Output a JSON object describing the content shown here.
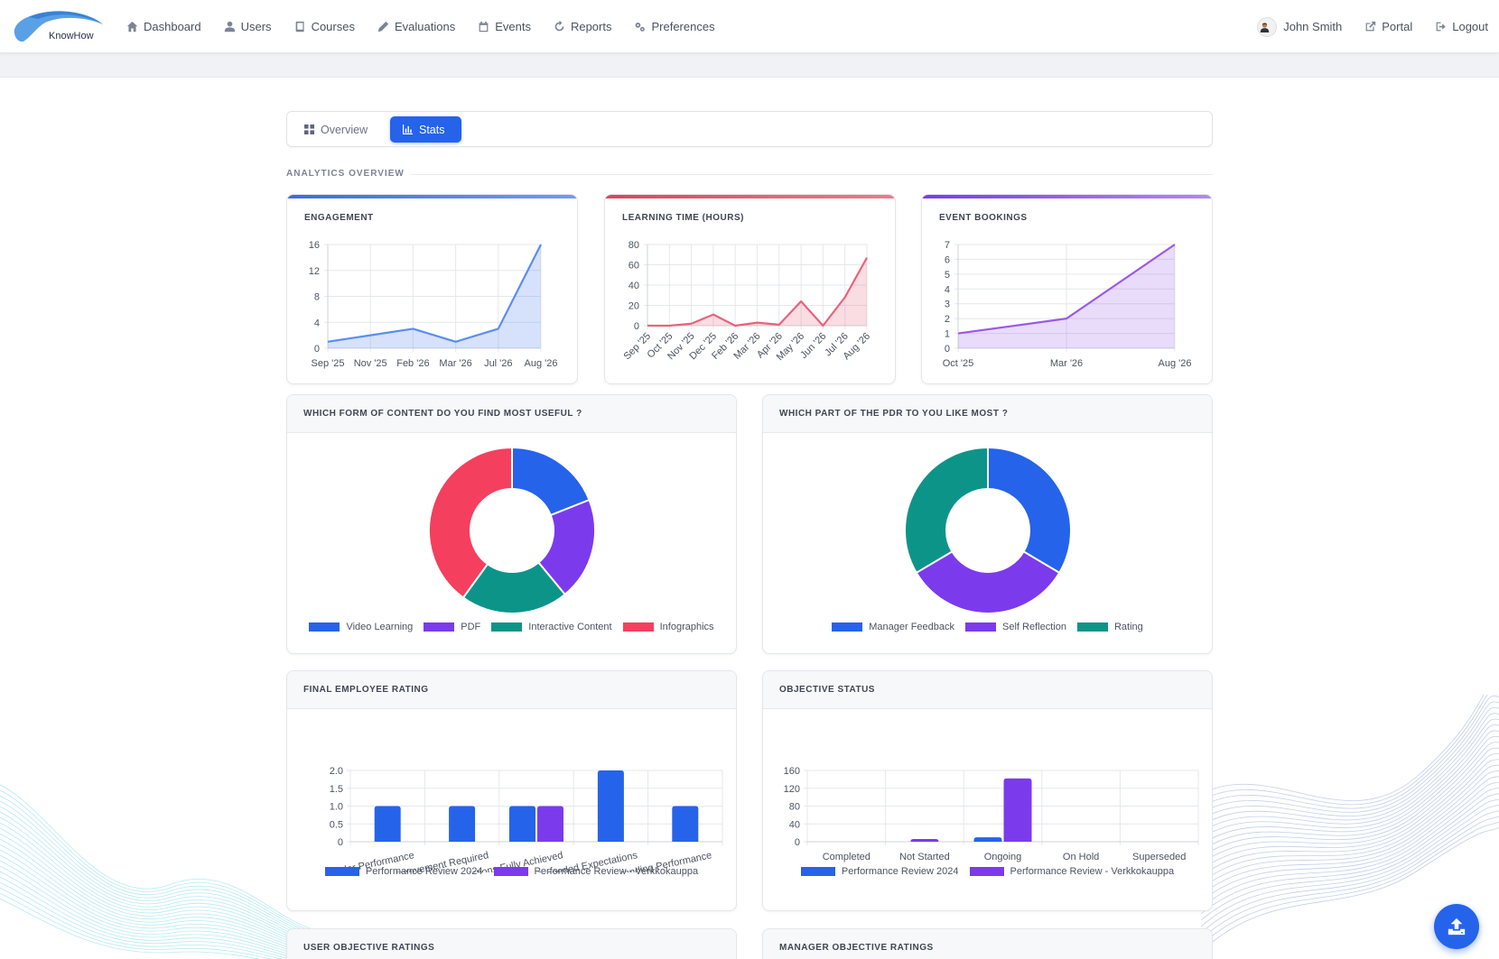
{
  "nav": {
    "logo_text": "KnowHow",
    "items": [
      {
        "label": "Dashboard",
        "icon": "home-icon"
      },
      {
        "label": "Users",
        "icon": "user-icon"
      },
      {
        "label": "Courses",
        "icon": "book-icon"
      },
      {
        "label": "Evaluations",
        "icon": "pencil-icon"
      },
      {
        "label": "Events",
        "icon": "calendar-icon"
      },
      {
        "label": "Reports",
        "icon": "refresh-icon"
      },
      {
        "label": "Preferences",
        "icon": "gears-icon"
      }
    ],
    "user_name": "John Smith",
    "portal_label": "Portal",
    "logout_label": "Logout"
  },
  "tabs": {
    "overview": "Overview",
    "stats": "Stats",
    "active": "stats"
  },
  "section_label": "ANALYTICS OVERVIEW",
  "colors": {
    "primary": "#2563eb",
    "purple": "#7c3aed",
    "teal": "#0d9488",
    "red": "#f43f5e",
    "engagement_line": "#5b8def",
    "learning_line": "#e8637b",
    "bookings_line": "#9b59e6"
  },
  "cards": {
    "engagement": {
      "title": "ENGAGEMENT"
    },
    "learning": {
      "title": "LEARNING TIME (HOURS)"
    },
    "bookings": {
      "title": "EVENT BOOKINGS"
    }
  },
  "panels": {
    "content": {
      "title": "WHICH FORM OF CONTENT DO YOU FIND MOST USEFUL ?"
    },
    "pdr": {
      "title": "WHICH PART OF THE PDR TO YOU LIKE MOST ?"
    },
    "rating": {
      "title": "FINAL EMPLOYEE RATING"
    },
    "objective": {
      "title": "OBJECTIVE STATUS"
    },
    "user_obj": {
      "title": "USER OBJECTIVE RATINGS"
    },
    "manager_obj": {
      "title": "MANAGER OBJECTIVE RATINGS"
    }
  },
  "chart_data": [
    {
      "id": "engagement",
      "type": "area",
      "title": "ENGAGEMENT",
      "x": [
        "Sep '25",
        "Nov '25",
        "Feb '26",
        "Mar '26",
        "Jul '26",
        "Aug '26"
      ],
      "values": [
        1,
        2,
        3,
        1,
        3,
        16
      ],
      "yticks": [
        0,
        4,
        8,
        12,
        16
      ],
      "ylim": [
        0,
        16
      ],
      "grid": true
    },
    {
      "id": "learning",
      "type": "area",
      "title": "LEARNING TIME (HOURS)",
      "x": [
        "Sep '25",
        "Oct '25",
        "Nov '25",
        "Dec '25",
        "Feb '26",
        "Mar '26",
        "Apr '26",
        "May '26",
        "Jun '26",
        "Jul '26",
        "Aug '26"
      ],
      "values": [
        0,
        0,
        2,
        11,
        0,
        3,
        1,
        24,
        0,
        28,
        67
      ],
      "yticks": [
        0,
        20,
        40,
        60,
        80
      ],
      "ylim": [
        0,
        80
      ],
      "grid": true
    },
    {
      "id": "bookings",
      "type": "area",
      "title": "EVENT BOOKINGS",
      "x": [
        "Oct '25",
        "Mar '26",
        "Aug '26"
      ],
      "values": [
        1,
        2,
        7
      ],
      "yticks": [
        0,
        1,
        2,
        3,
        4,
        5,
        6,
        7
      ],
      "ylim": [
        0,
        7
      ],
      "grid": true
    },
    {
      "id": "content",
      "type": "pie",
      "title": "WHICH FORM OF CONTENT DO YOU FIND MOST USEFUL ?",
      "labels": [
        "Video Learning",
        "PDF",
        "Interactive Content",
        "Infographics"
      ],
      "values": [
        19,
        20,
        21,
        40
      ],
      "colors": [
        "#2563eb",
        "#7c3aed",
        "#0d9488",
        "#f43f5e"
      ]
    },
    {
      "id": "pdr",
      "type": "pie",
      "title": "WHICH PART OF THE PDR TO YOU LIKE MOST ?",
      "labels": [
        "Manager Feedback",
        "Self Reflection",
        "Rating"
      ],
      "values": [
        33.5,
        33,
        33.5
      ],
      "colors": [
        "#2563eb",
        "#7c3aed",
        "#0d9488"
      ]
    },
    {
      "id": "rating",
      "type": "bar",
      "title": "FINAL EMPLOYEE RATING",
      "categories": [
        "Under Performance",
        "Some Improvement Required",
        "Expectations Fully Achieved",
        "Exceeded Expectations",
        "Outstanding Performance"
      ],
      "series": [
        {
          "name": "Performance Review 2024",
          "values": [
            1,
            1,
            1,
            2,
            1
          ],
          "color": "#2563eb"
        },
        {
          "name": "Performance Review - Verkkokauppa",
          "values": [
            0,
            0,
            1,
            0,
            0
          ],
          "color": "#7c3aed"
        }
      ],
      "yticks": [
        "0",
        "0.5",
        "1.0",
        "1.5",
        "2.0"
      ],
      "ylim": [
        0,
        2
      ],
      "grid": true
    },
    {
      "id": "objective",
      "type": "bar",
      "title": "OBJECTIVE STATUS",
      "categories": [
        "Completed",
        "Not Started",
        "Ongoing",
        "On Hold",
        "Superseded"
      ],
      "series": [
        {
          "name": "Performance Review 2024",
          "values": [
            0,
            0,
            10,
            0,
            0
          ],
          "color": "#2563eb"
        },
        {
          "name": "Performance Review - Verkkokauppa",
          "values": [
            0,
            6,
            142,
            0,
            0
          ],
          "color": "#7c3aed"
        }
      ],
      "yticks": [
        "0",
        "40",
        "80",
        "120",
        "160"
      ],
      "ylim": [
        0,
        160
      ],
      "grid": true
    }
  ]
}
